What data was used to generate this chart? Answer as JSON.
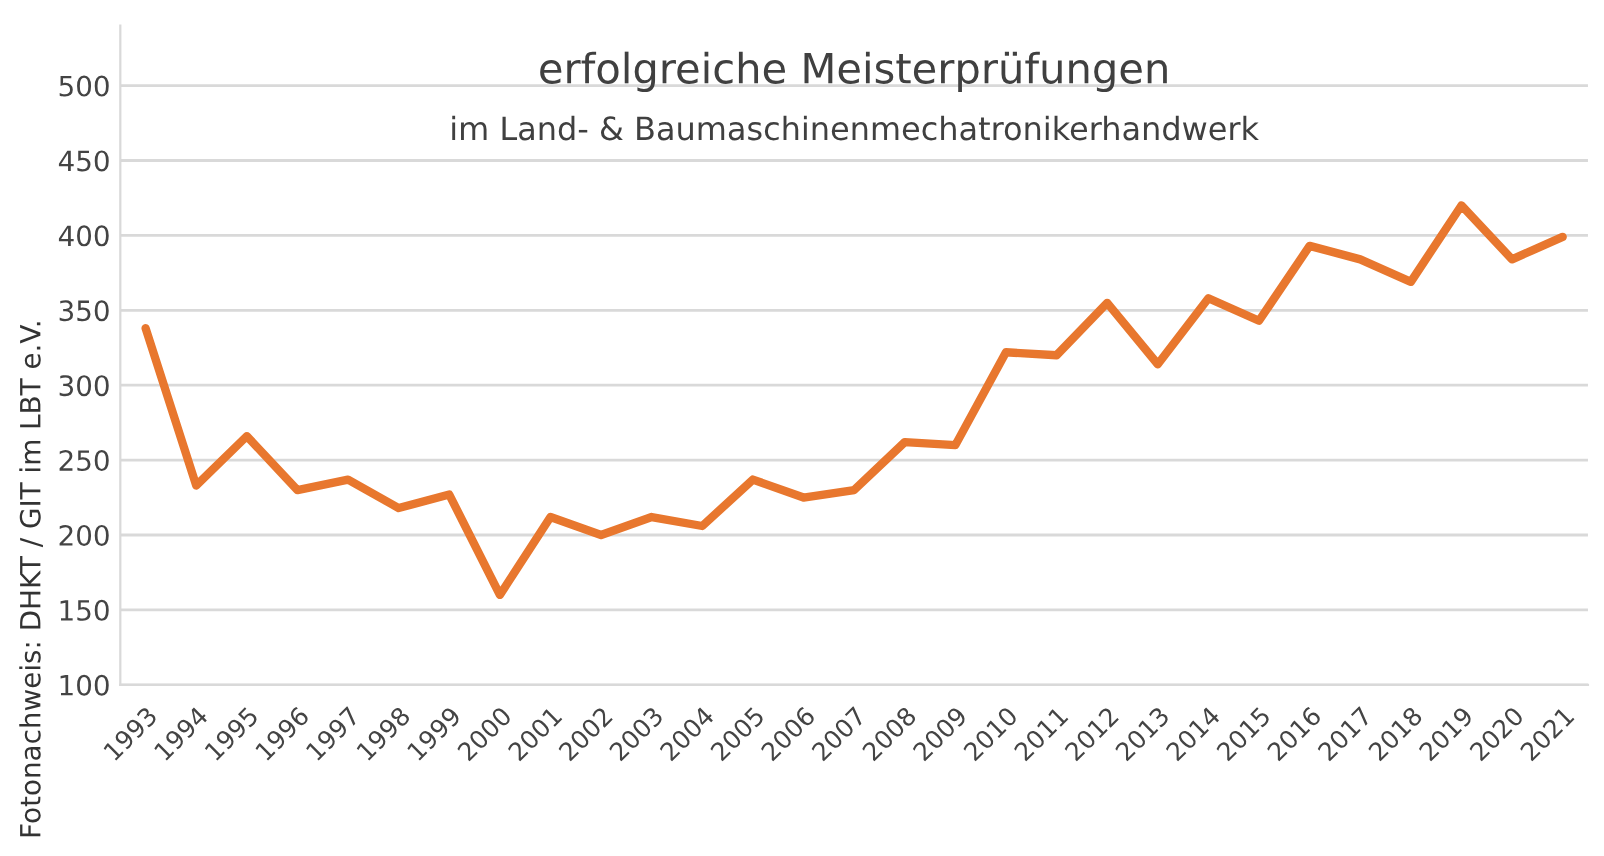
{
  "chart_data": {
    "type": "line",
    "title": "erfolgreiche Meisterprüfungen",
    "subtitle": "im Land- & Baumaschinenmechatronikerhandwerk",
    "categories": [
      "1993",
      "1994",
      "1995",
      "1996",
      "1997",
      "1998",
      "1999",
      "2000",
      "2001",
      "2002",
      "2003",
      "2004",
      "2005",
      "2006",
      "2007",
      "2008",
      "2009",
      "2010",
      "2011",
      "2012",
      "2013",
      "2014",
      "2015",
      "2016",
      "2017",
      "2018",
      "2019",
      "2020",
      "2021"
    ],
    "series": [
      {
        "color": "#e8772e",
        "values": [
          338,
          233,
          266,
          230,
          237,
          218,
          227,
          160,
          212,
          200,
          212,
          206,
          237,
          225,
          230,
          262,
          260,
          322,
          320,
          355,
          314,
          358,
          343,
          393,
          384,
          369,
          420,
          384,
          399
        ]
      }
    ],
    "ylim": [
      100,
      540
    ],
    "yticks": [
      100,
      150,
      200,
      250,
      300,
      350,
      400,
      450,
      500
    ],
    "grid": "y",
    "marker": "none",
    "line_style": "solid",
    "annotations": [
      "Fotonachweis: DHKT / GIT im LBT e.V."
    ]
  }
}
